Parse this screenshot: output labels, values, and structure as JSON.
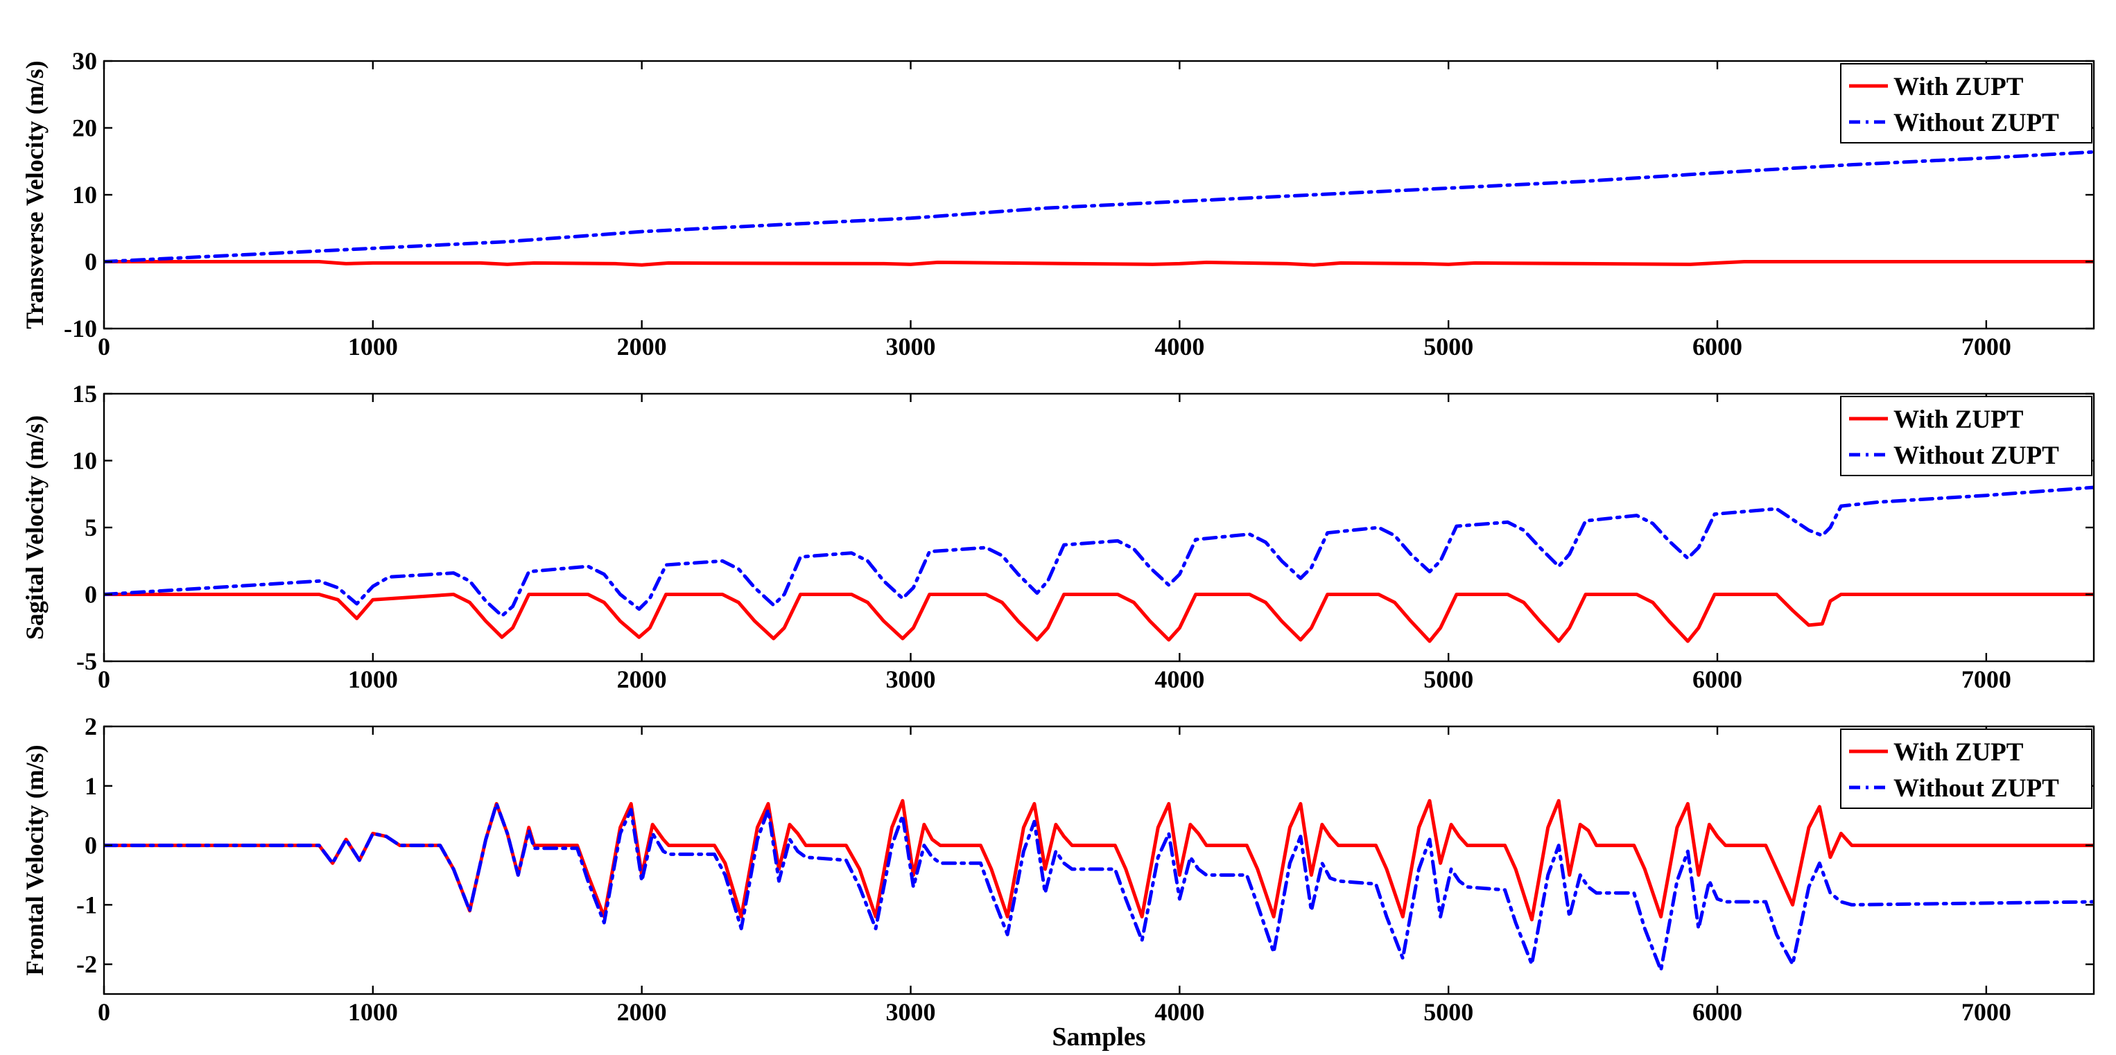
{
  "chart_data": [
    {
      "type": "line",
      "ylabel": "Transverse Velocity (m/s)",
      "xlabel": "",
      "xlim": [
        0,
        7400
      ],
      "ylim": [
        -10,
        30
      ],
      "xticks": [
        0,
        1000,
        2000,
        3000,
        4000,
        5000,
        6000,
        7000
      ],
      "yticks": [
        -10,
        0,
        10,
        20,
        30
      ],
      "legend": {
        "position": "top-right",
        "entries": [
          "With ZUPT",
          "Without ZUPT"
        ]
      },
      "series": [
        {
          "name": "With ZUPT",
          "color": "#ff0000",
          "style": "solid",
          "x": [
            0,
            800,
            900,
            1000,
            1400,
            1500,
            1600,
            1900,
            2000,
            2100,
            2900,
            3000,
            3100,
            3900,
            4000,
            4100,
            4400,
            4500,
            4600,
            4900,
            5000,
            5100,
            5900,
            6000,
            6100,
            7400
          ],
          "y": [
            0,
            0,
            -0.3,
            -0.2,
            -0.2,
            -0.4,
            -0.2,
            -0.3,
            -0.5,
            -0.2,
            -0.3,
            -0.4,
            -0.1,
            -0.4,
            -0.3,
            -0.1,
            -0.3,
            -0.5,
            -0.2,
            -0.3,
            -0.4,
            -0.2,
            -0.4,
            -0.2,
            0,
            0
          ]
        },
        {
          "name": "Without ZUPT",
          "color": "#0000ff",
          "style": "dashdot",
          "x": [
            0,
            500,
            1000,
            1500,
            2000,
            2500,
            3000,
            3500,
            4000,
            4500,
            5000,
            5500,
            6000,
            6500,
            7000,
            7400
          ],
          "y": [
            0,
            1,
            2,
            3,
            4.5,
            5.5,
            6.5,
            8,
            9,
            10,
            11,
            12,
            13.3,
            14.5,
            15.5,
            16.4
          ]
        }
      ]
    },
    {
      "type": "line",
      "ylabel": "Sagital Velocity (m/s)",
      "xlabel": "",
      "xlim": [
        0,
        7400
      ],
      "ylim": [
        -5,
        15
      ],
      "xticks": [
        0,
        1000,
        2000,
        3000,
        4000,
        5000,
        6000,
        7000
      ],
      "yticks": [
        -5,
        0,
        5,
        10,
        15
      ],
      "legend": {
        "position": "top-right",
        "entries": [
          "With ZUPT",
          "Without ZUPT"
        ]
      },
      "series": [
        {
          "name": "With ZUPT",
          "color": "#ff0000",
          "style": "solid",
          "x": [
            0,
            800,
            870,
            940,
            1000,
            1300,
            1360,
            1420,
            1480,
            1520,
            1580,
            1800,
            1860,
            1920,
            1990,
            2030,
            2090,
            2300,
            2360,
            2420,
            2490,
            2530,
            2590,
            2780,
            2840,
            2900,
            2970,
            3010,
            3070,
            3280,
            3340,
            3400,
            3470,
            3510,
            3570,
            3770,
            3830,
            3890,
            3960,
            4000,
            4060,
            4260,
            4320,
            4380,
            4450,
            4490,
            4550,
            4740,
            4800,
            4860,
            4930,
            4970,
            5030,
            5220,
            5280,
            5340,
            5410,
            5450,
            5510,
            5700,
            5760,
            5820,
            5890,
            5930,
            5990,
            6220,
            6280,
            6340,
            6390,
            6420,
            6460,
            7400
          ],
          "y": [
            0,
            0,
            -0.4,
            -1.8,
            -0.4,
            0,
            -0.6,
            -2,
            -3.2,
            -2.5,
            0,
            0,
            -0.6,
            -2,
            -3.2,
            -2.5,
            0,
            0,
            -0.6,
            -2,
            -3.3,
            -2.5,
            0,
            0,
            -0.6,
            -2,
            -3.3,
            -2.5,
            0,
            0,
            -0.6,
            -2,
            -3.4,
            -2.5,
            0,
            0,
            -0.6,
            -2,
            -3.4,
            -2.5,
            0,
            0,
            -0.6,
            -2,
            -3.4,
            -2.5,
            0,
            0,
            -0.6,
            -2,
            -3.5,
            -2.5,
            0,
            0,
            -0.6,
            -2,
            -3.5,
            -2.5,
            0,
            0,
            -0.6,
            -2,
            -3.5,
            -2.5,
            0,
            0,
            -1.2,
            -2.3,
            -2.2,
            -0.5,
            0,
            0
          ]
        },
        {
          "name": "Without ZUPT",
          "color": "#0000ff",
          "style": "dashdot",
          "x": [
            0,
            400,
            800,
            870,
            940,
            1000,
            1060,
            1300,
            1360,
            1420,
            1480,
            1520,
            1580,
            1800,
            1860,
            1920,
            1990,
            2030,
            2090,
            2300,
            2360,
            2420,
            2490,
            2530,
            2590,
            2780,
            2840,
            2900,
            2970,
            3010,
            3070,
            3280,
            3340,
            3400,
            3470,
            3510,
            3570,
            3770,
            3830,
            3890,
            3960,
            4000,
            4060,
            4260,
            4320,
            4380,
            4450,
            4490,
            4550,
            4740,
            4800,
            4860,
            4930,
            4970,
            5030,
            5220,
            5280,
            5340,
            5410,
            5450,
            5510,
            5700,
            5760,
            5820,
            5890,
            5930,
            5990,
            6220,
            6280,
            6340,
            6390,
            6420,
            6460,
            6600,
            7000,
            7400
          ],
          "y": [
            0,
            0.5,
            1,
            0.5,
            -0.7,
            0.6,
            1.3,
            1.6,
            1,
            -0.5,
            -1.6,
            -0.9,
            1.7,
            2.1,
            1.5,
            0,
            -1.1,
            -0.3,
            2.2,
            2.5,
            1.9,
            0.5,
            -0.8,
            0,
            2.8,
            3.1,
            2.5,
            1,
            -0.3,
            0.5,
            3.2,
            3.5,
            2.9,
            1.5,
            0.1,
            1,
            3.7,
            4,
            3.4,
            2,
            0.7,
            1.5,
            4.1,
            4.5,
            3.9,
            2.5,
            1.2,
            2,
            4.6,
            5,
            4.4,
            3,
            1.7,
            2.5,
            5.1,
            5.4,
            4.8,
            3.5,
            2.1,
            3,
            5.5,
            5.9,
            5.3,
            4,
            2.7,
            3.5,
            6,
            6.4,
            5.6,
            4.8,
            4.4,
            5,
            6.6,
            6.9,
            7.4,
            8
          ]
        }
      ]
    },
    {
      "type": "line",
      "ylabel": "Frontal Velocity (m/s)",
      "xlabel": "Samples",
      "xlim": [
        0,
        7400
      ],
      "ylim": [
        -2.5,
        2
      ],
      "xticks": [
        0,
        1000,
        2000,
        3000,
        4000,
        5000,
        6000,
        7000
      ],
      "yticks": [
        -2,
        -1,
        0,
        1,
        2
      ],
      "yticklabels": [
        "-2",
        "-1",
        "0",
        "1",
        "2"
      ],
      "legend": {
        "position": "top-right",
        "entries": [
          "With ZUPT",
          "Without ZUPT"
        ]
      },
      "series": [
        {
          "name": "With ZUPT",
          "color": "#ff0000",
          "style": "solid",
          "x": [
            0,
            800,
            850,
            900,
            950,
            1000,
            1050,
            1100,
            1250,
            1300,
            1360,
            1420,
            1460,
            1500,
            1540,
            1580,
            1600,
            1760,
            1800,
            1860,
            1920,
            1960,
            2000,
            2040,
            2080,
            2100,
            2270,
            2310,
            2370,
            2430,
            2470,
            2510,
            2550,
            2580,
            2610,
            2760,
            2810,
            2870,
            2930,
            2970,
            3010,
            3050,
            3080,
            3110,
            3260,
            3300,
            3360,
            3420,
            3460,
            3500,
            3540,
            3570,
            3600,
            3760,
            3800,
            3860,
            3920,
            3960,
            4000,
            4040,
            4070,
            4100,
            4250,
            4290,
            4350,
            4410,
            4450,
            4490,
            4530,
            4560,
            4590,
            4730,
            4770,
            4830,
            4890,
            4930,
            4970,
            5010,
            5040,
            5070,
            5210,
            5250,
            5310,
            5370,
            5410,
            5450,
            5490,
            5520,
            5550,
            5690,
            5730,
            5790,
            5850,
            5890,
            5930,
            5970,
            6000,
            6030,
            6180,
            6220,
            6280,
            6340,
            6380,
            6420,
            6460,
            6500,
            7400
          ],
          "y": [
            0,
            0,
            -0.3,
            0.1,
            -0.25,
            0.2,
            0.15,
            0,
            0,
            -0.4,
            -1.1,
            0.1,
            0.7,
            0.2,
            -0.5,
            0.3,
            0,
            0,
            -0.5,
            -1.2,
            0.3,
            0.7,
            -0.5,
            0.35,
            0.1,
            0,
            0,
            -0.3,
            -1.2,
            0.3,
            0.7,
            -0.4,
            0.35,
            0.2,
            0,
            0,
            -0.4,
            -1.2,
            0.3,
            0.75,
            -0.5,
            0.35,
            0.1,
            0,
            0,
            -0.4,
            -1.2,
            0.3,
            0.7,
            -0.4,
            0.35,
            0.15,
            0,
            0,
            -0.4,
            -1.2,
            0.3,
            0.7,
            -0.5,
            0.35,
            0.2,
            0,
            0,
            -0.4,
            -1.2,
            0.3,
            0.7,
            -0.5,
            0.35,
            0.15,
            0,
            0,
            -0.4,
            -1.2,
            0.3,
            0.75,
            -0.3,
            0.35,
            0.15,
            0,
            0,
            -0.4,
            -1.25,
            0.3,
            0.75,
            -0.5,
            0.35,
            0.25,
            0,
            0,
            -0.4,
            -1.2,
            0.3,
            0.7,
            -0.5,
            0.35,
            0.15,
            0,
            0,
            -0.4,
            -1,
            0.3,
            0.65,
            -0.2,
            0.2,
            0,
            0
          ]
        },
        {
          "name": "Without ZUPT",
          "color": "#0000ff",
          "style": "dashdot",
          "x": [
            0,
            800,
            850,
            900,
            950,
            1000,
            1050,
            1100,
            1250,
            1300,
            1360,
            1420,
            1460,
            1500,
            1540,
            1580,
            1600,
            1760,
            1800,
            1860,
            1920,
            1960,
            2000,
            2040,
            2080,
            2100,
            2270,
            2310,
            2370,
            2430,
            2470,
            2510,
            2550,
            2580,
            2610,
            2760,
            2810,
            2870,
            2930,
            2970,
            3010,
            3050,
            3080,
            3110,
            3260,
            3300,
            3360,
            3420,
            3460,
            3500,
            3540,
            3570,
            3600,
            3760,
            3800,
            3860,
            3920,
            3960,
            4000,
            4040,
            4070,
            4100,
            4250,
            4290,
            4350,
            4410,
            4450,
            4490,
            4530,
            4560,
            4590,
            4730,
            4770,
            4830,
            4890,
            4930,
            4970,
            5010,
            5040,
            5070,
            5210,
            5250,
            5310,
            5370,
            5410,
            5450,
            5490,
            5520,
            5550,
            5690,
            5730,
            5790,
            5850,
            5890,
            5930,
            5970,
            6000,
            6030,
            6180,
            6220,
            6280,
            6340,
            6380,
            6420,
            6460,
            6500,
            7400
          ],
          "y": [
            0,
            0,
            -0.3,
            0.1,
            -0.25,
            0.2,
            0.15,
            0,
            0,
            -0.4,
            -1.1,
            0.1,
            0.7,
            0.2,
            -0.5,
            0.25,
            -0.05,
            -0.05,
            -0.6,
            -1.3,
            0.2,
            0.6,
            -0.6,
            0.2,
            -0.1,
            -0.15,
            -0.15,
            -0.5,
            -1.4,
            0.1,
            0.6,
            -0.6,
            0.1,
            -0.1,
            -0.2,
            -0.25,
            -0.7,
            -1.4,
            0,
            0.5,
            -0.7,
            0,
            -0.2,
            -0.3,
            -0.3,
            -0.8,
            -1.5,
            -0.1,
            0.4,
            -0.8,
            -0.1,
            -0.3,
            -0.4,
            -0.4,
            -0.9,
            -1.6,
            -0.2,
            0.2,
            -0.9,
            -0.2,
            -0.4,
            -0.5,
            -0.5,
            -1,
            -1.8,
            -0.3,
            0.15,
            -1.1,
            -0.3,
            -0.55,
            -0.6,
            -0.65,
            -1.2,
            -1.9,
            -0.4,
            0.1,
            -1.2,
            -0.4,
            -0.6,
            -0.7,
            -0.75,
            -1.3,
            -2,
            -0.5,
            0,
            -1.2,
            -0.5,
            -0.7,
            -0.8,
            -0.8,
            -1.4,
            -2.1,
            -0.6,
            -0.1,
            -1.4,
            -0.6,
            -0.9,
            -0.95,
            -0.95,
            -1.5,
            -2,
            -0.7,
            -0.3,
            -0.8,
            -0.95,
            -1,
            -0.95
          ]
        }
      ]
    }
  ]
}
